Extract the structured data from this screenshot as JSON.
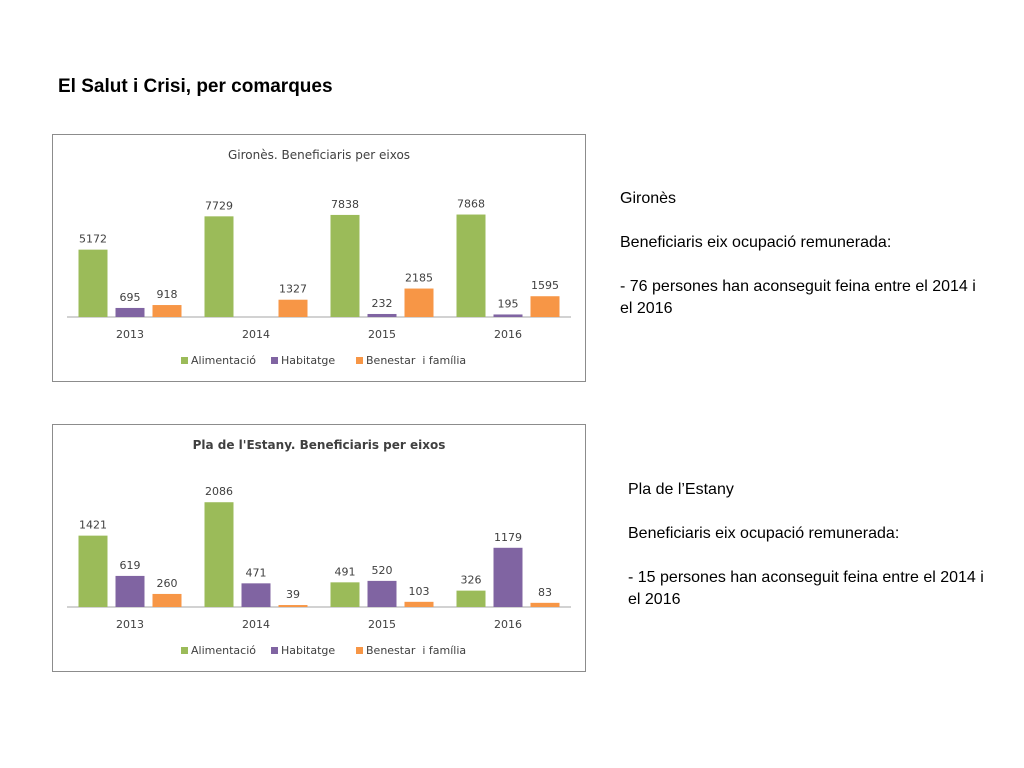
{
  "page": {
    "title": "El Salut i Crisi, per comarques"
  },
  "colors": {
    "Alimentació": "#9bbb59",
    "Habitatge": "#8064a2",
    "Benestar  i família": "#f79646",
    "axis": "#a6a6a6",
    "text": "#404040"
  },
  "chart_data": [
    {
      "type": "bar",
      "title": "Gironès. Beneficiaris per eixos",
      "categories": [
        "2013",
        "2014",
        "2015",
        "2016"
      ],
      "series": [
        {
          "name": "Alimentació",
          "values": [
            5172,
            7729,
            7838,
            7868
          ],
          "labels": [
            "5172",
            "7729",
            "7838",
            "7868"
          ]
        },
        {
          "name": "Habitatge",
          "values": [
            695,
            null,
            232,
            195
          ],
          "labels": [
            "695",
            "",
            "232",
            "195"
          ]
        },
        {
          "name": "Benestar  i família",
          "values": [
            918,
            1327,
            2185,
            1595
          ],
          "labels": [
            "918",
            "1327",
            "2185",
            "1595"
          ]
        }
      ],
      "ylim": [
        0,
        8600
      ],
      "legend": "bottom",
      "grid": false
    },
    {
      "type": "bar",
      "title": "Pla de l'Estany. Beneficiaris per eixos",
      "categories": [
        "2013",
        "2014",
        "2015",
        "2016"
      ],
      "series": [
        {
          "name": "Alimentació",
          "values": [
            1421,
            2086,
            491,
            326
          ],
          "labels": [
            "1421",
            "2086",
            "491",
            "326"
          ]
        },
        {
          "name": "Habitatge",
          "values": [
            619,
            471,
            520,
            1179
          ],
          "labels": [
            "619",
            "471",
            "520",
            "1179"
          ]
        },
        {
          "name": "Benestar  i família",
          "values": [
            260,
            39,
            103,
            83
          ],
          "labels": [
            "260",
            "39",
            "103",
            "83"
          ]
        }
      ],
      "ylim": [
        0,
        2230
      ],
      "legend": "bottom",
      "grid": false
    }
  ],
  "descriptions": [
    {
      "name": "Gironès",
      "subtitle": "Beneficiaris eix ocupació remunerada:",
      "detail": "- 76 persones han aconseguit feina entre el 2014 i el 2016"
    },
    {
      "name": "Pla de l’Estany",
      "subtitle": "Beneficiaris eix ocupació remunerada:",
      "detail": "- 15 persones han aconseguit feina entre el 2014 i el 2016"
    }
  ]
}
